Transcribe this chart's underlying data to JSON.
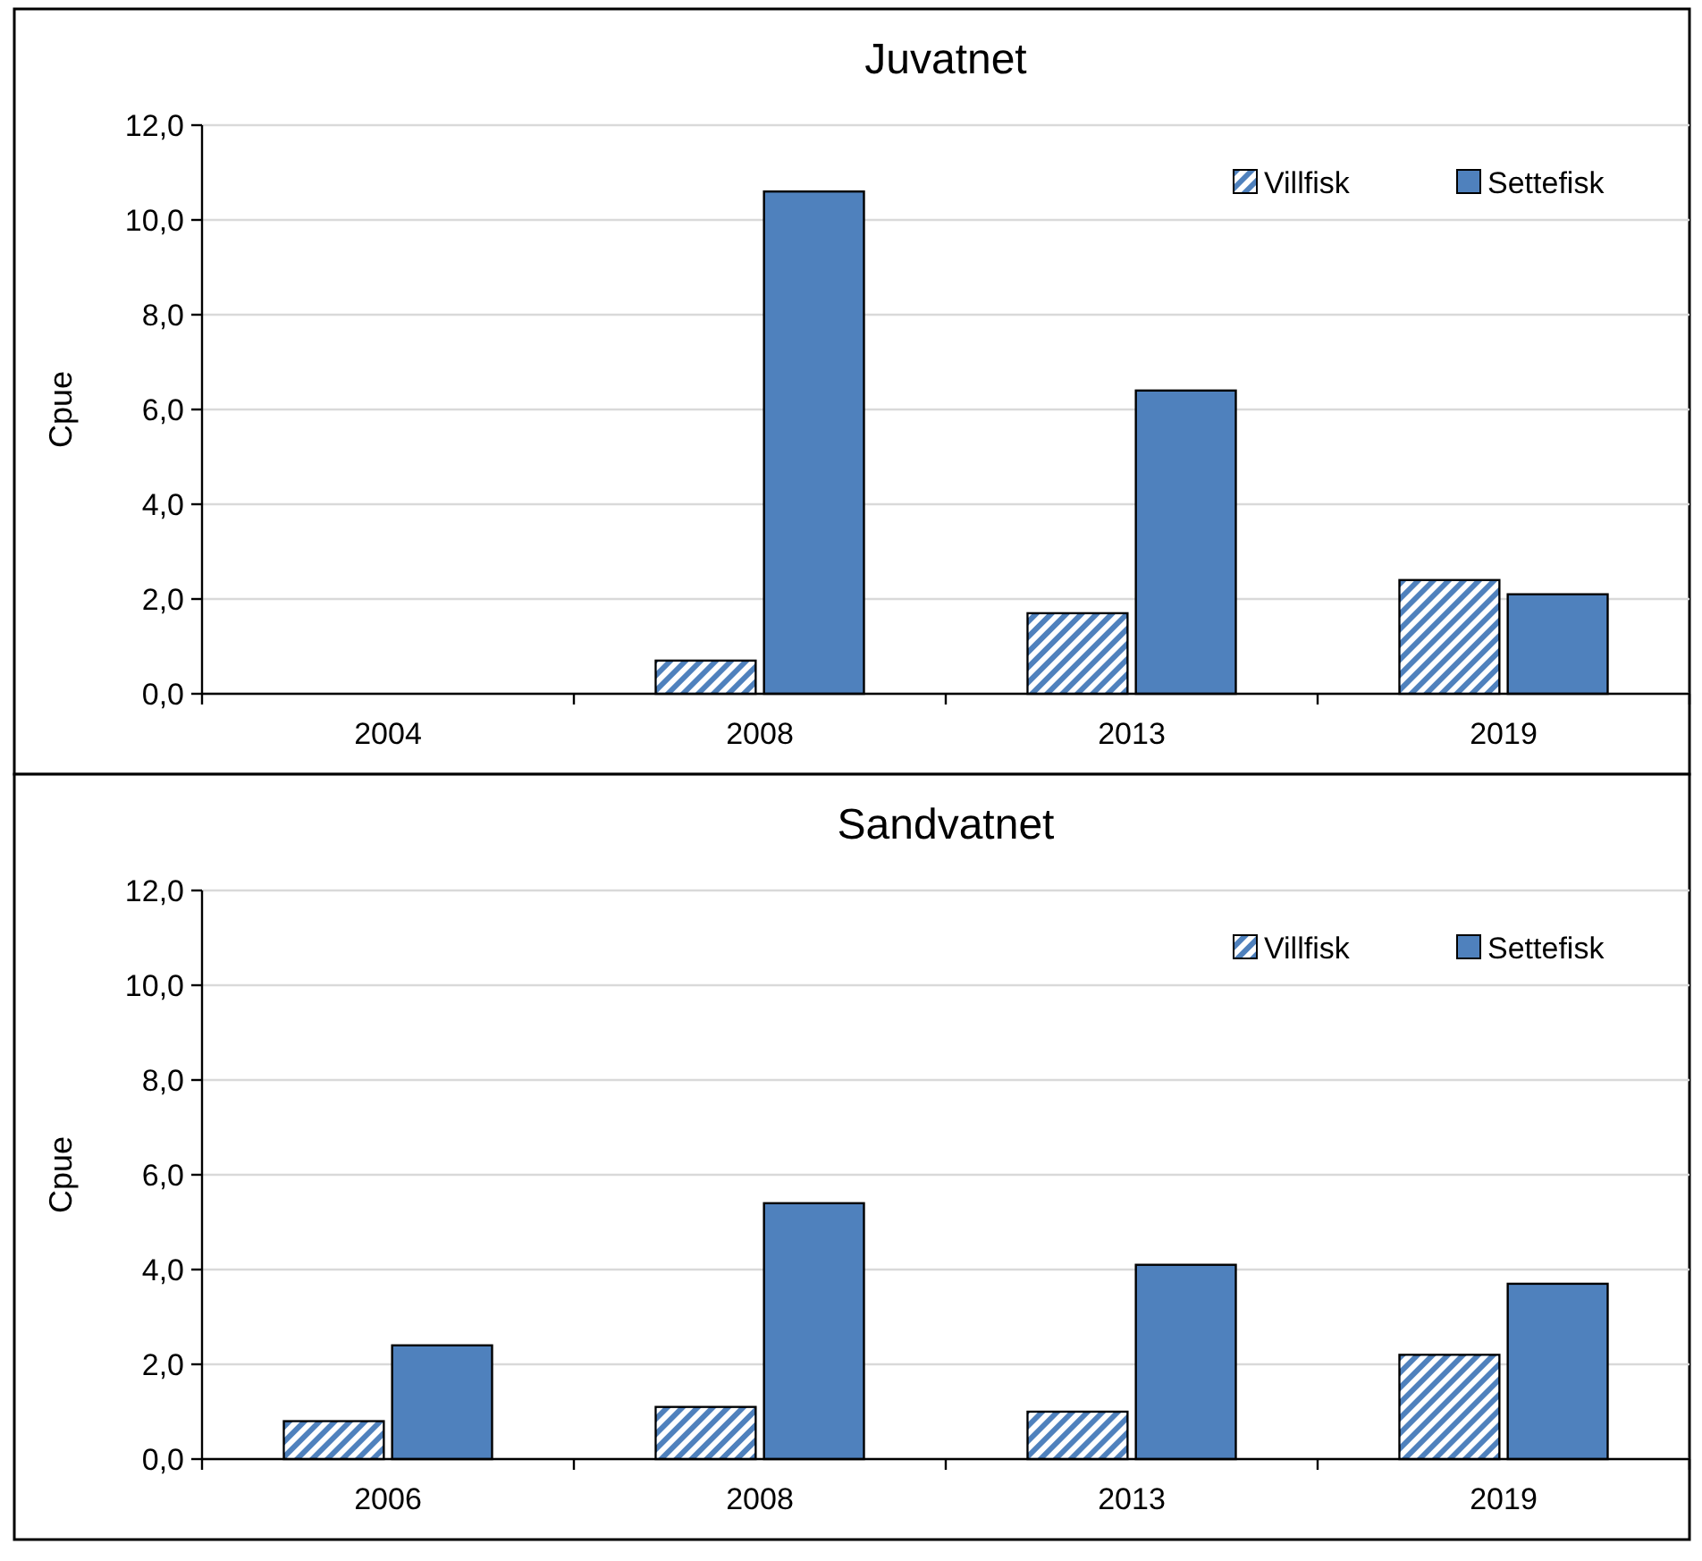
{
  "chart_data": [
    {
      "type": "bar",
      "title": "Juvatnet",
      "ylabel": "Cpue",
      "categories": [
        "2004",
        "2008",
        "2013",
        "2019"
      ],
      "series": [
        {
          "name": "Villfisk",
          "color": "#4f81bd",
          "values": [
            null,
            0.7,
            1.7,
            2.4
          ]
        },
        {
          "name": "Settefisk",
          "color": "#4f81bd",
          "values": [
            null,
            10.6,
            6.4,
            2.1
          ]
        }
      ],
      "ylim": [
        0,
        12
      ],
      "yticks": [
        {
          "value": 0,
          "label": "0,0"
        },
        {
          "value": 2,
          "label": "2,0"
        },
        {
          "value": 4,
          "label": "4,0"
        },
        {
          "value": 6,
          "label": "6,0"
        },
        {
          "value": 8,
          "label": "8,0"
        },
        {
          "value": 10,
          "label": "10,0"
        },
        {
          "value": 12,
          "label": "12,0"
        }
      ],
      "grid": "y",
      "legend": "top right"
    },
    {
      "type": "bar",
      "title": "Sandvatnet",
      "ylabel": "Cpue",
      "categories": [
        "2006",
        "2008",
        "2013",
        "2019"
      ],
      "series": [
        {
          "name": "Villfisk",
          "color": "#4f81bd",
          "values": [
            0.8,
            1.1,
            1.0,
            2.2
          ]
        },
        {
          "name": "Settefisk",
          "color": "#4f81bd",
          "values": [
            2.4,
            5.4,
            4.1,
            3.7
          ]
        }
      ],
      "ylim": [
        0,
        12
      ],
      "yticks": [
        {
          "value": 0,
          "label": "0,0"
        },
        {
          "value": 2,
          "label": "2,0"
        },
        {
          "value": 4,
          "label": "4,0"
        },
        {
          "value": 6,
          "label": "6,0"
        },
        {
          "value": 8,
          "label": "8,0"
        },
        {
          "value": 10,
          "label": "10,0"
        },
        {
          "value": 12,
          "label": "12,0"
        }
      ],
      "grid": "y",
      "legend": "top right"
    }
  ]
}
